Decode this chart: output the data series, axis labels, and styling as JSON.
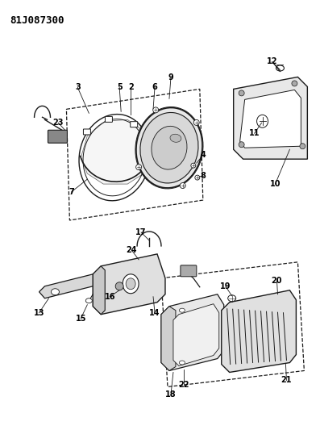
{
  "title": "81J087300",
  "bg_color": "#ffffff",
  "fig_width": 3.97,
  "fig_height": 5.33,
  "dpi": 100,
  "line_color": "#1a1a1a",
  "label_fontsize": 7.0
}
